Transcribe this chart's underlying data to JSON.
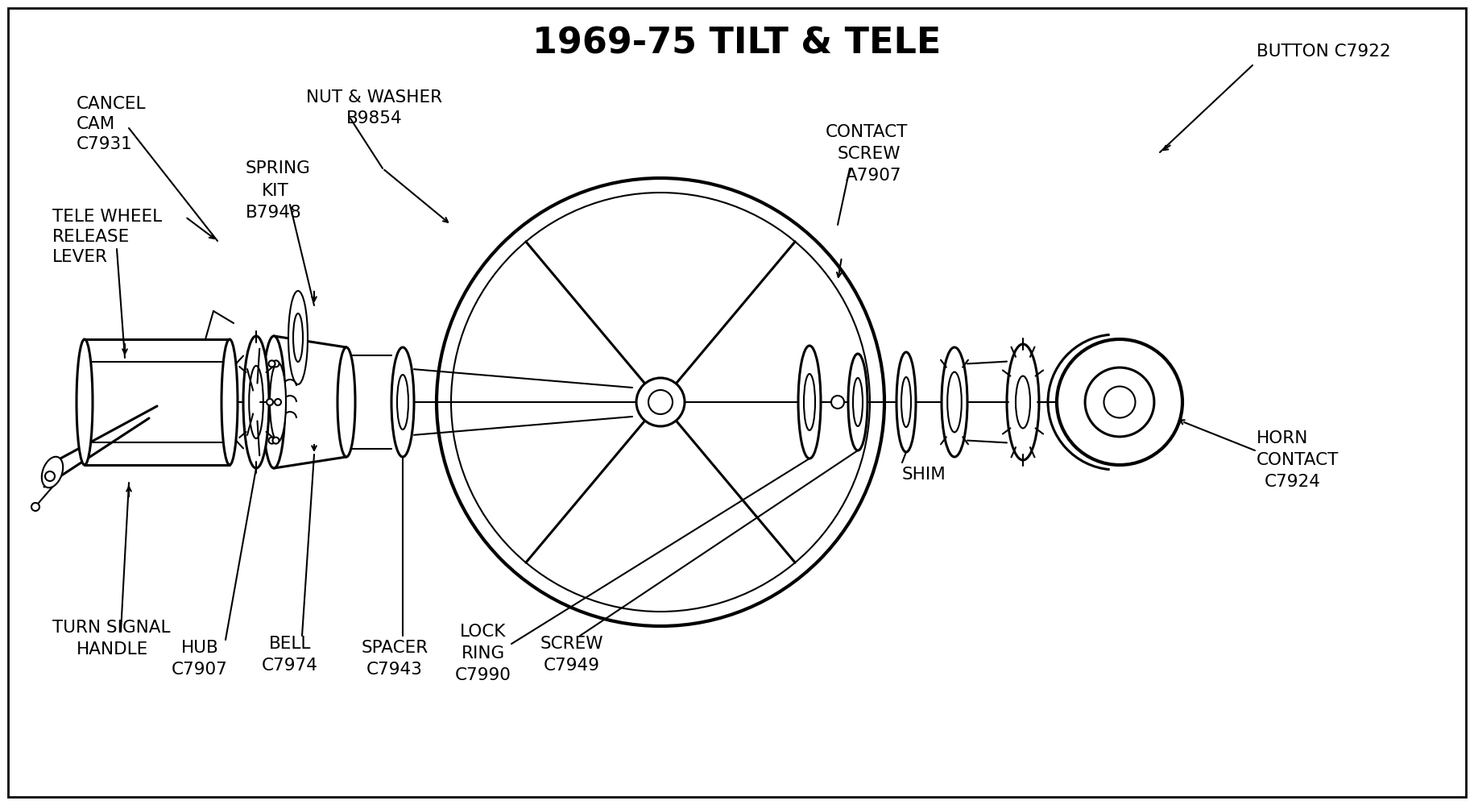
{
  "title": "1969-75 TILT & TELE",
  "bg_color": "#ffffff",
  "line_color": "#000000",
  "title_fontsize": 32,
  "label_fontsize": 15.5,
  "fig_w": 18.3,
  "fig_h": 9.99,
  "xlim": [
    0,
    1830
  ],
  "ylim": [
    0,
    999
  ]
}
